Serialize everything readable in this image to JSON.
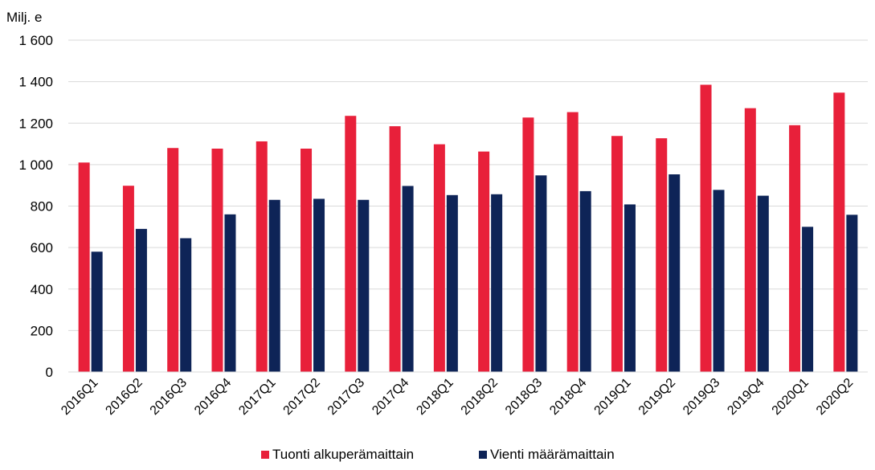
{
  "chart_data": {
    "type": "bar",
    "unit_label": "Milj. e",
    "categories": [
      "2016Q1",
      "2016Q2",
      "2016Q3",
      "2016Q4",
      "2017Q1",
      "2017Q2",
      "2017Q3",
      "2017Q4",
      "2018Q1",
      "2018Q2",
      "2018Q3",
      "2018Q4",
      "2019Q1",
      "2019Q2",
      "2019Q3",
      "2019Q4",
      "2020Q1",
      "2020Q2"
    ],
    "series": [
      {
        "name": "Tuonti alkuperämaittain",
        "color": "#e8203a",
        "values": [
          1010,
          898,
          1080,
          1077,
          1112,
          1077,
          1235,
          1185,
          1098,
          1063,
          1227,
          1253,
          1138,
          1127,
          1385,
          1272,
          1190,
          1347
        ]
      },
      {
        "name": "Vienti määrämaittain",
        "color": "#0e2457",
        "values": [
          580,
          690,
          645,
          760,
          830,
          835,
          830,
          897,
          853,
          857,
          948,
          872,
          808,
          953,
          878,
          850,
          700,
          758
        ]
      }
    ],
    "ylim": [
      0,
      1600
    ],
    "yticks": [
      0,
      200,
      400,
      600,
      800,
      1000,
      1200,
      1400,
      1600
    ],
    "ytick_labels": [
      "0",
      "200",
      "400",
      "600",
      "800",
      "1 000",
      "1 200",
      "1 400",
      "1 600"
    ],
    "grid": true,
    "legend_position": "bottom-center"
  }
}
